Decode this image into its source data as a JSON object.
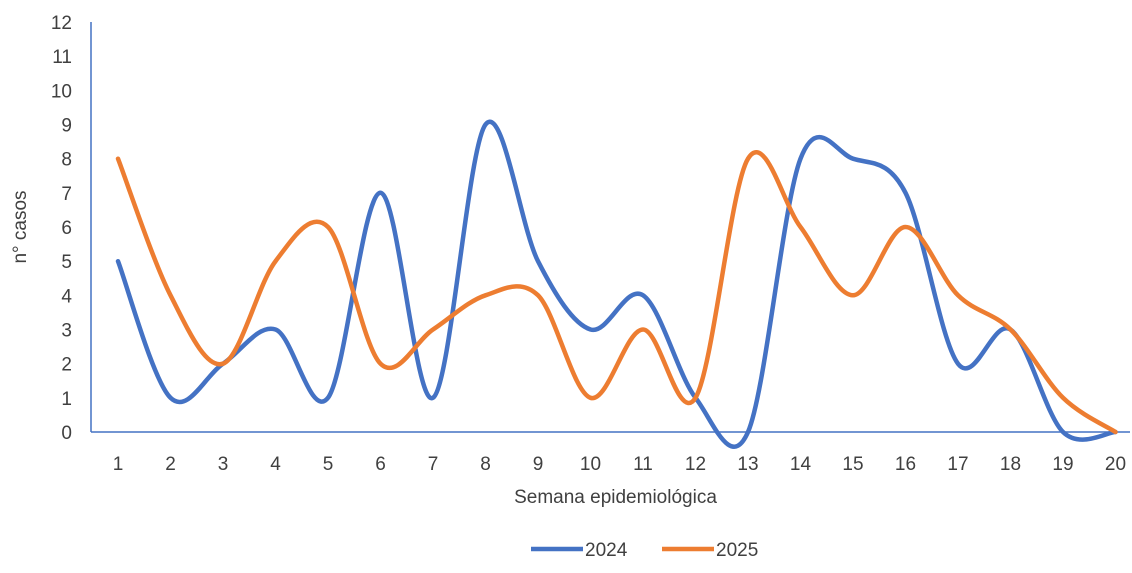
{
  "chart_data": {
    "type": "line",
    "title": "",
    "xlabel": "Semana epidemiológica",
    "ylabel": "n° casos",
    "ylim": [
      0,
      12
    ],
    "yticks": [
      "0",
      "1",
      "2",
      "3",
      "4",
      "5",
      "6",
      "7",
      "8",
      "9",
      "10",
      "11",
      "12"
    ],
    "categories": [
      "1",
      "2",
      "3",
      "4",
      "5",
      "6",
      "7",
      "8",
      "9",
      "10",
      "11",
      "12",
      "13",
      "14",
      "15",
      "16",
      "17",
      "18",
      "19",
      "20"
    ],
    "series": [
      {
        "name": "2024",
        "color": "#4472C4",
        "values": [
          5,
          1,
          2,
          3,
          1,
          7,
          1,
          9,
          5,
          3,
          4,
          1,
          0,
          8,
          8,
          7,
          2,
          3,
          0,
          0
        ]
      },
      {
        "name": "2025",
        "color": "#ED7D31",
        "values": [
          8,
          4,
          2,
          5,
          6,
          2,
          3,
          4,
          4,
          1,
          3,
          1,
          8,
          6,
          4,
          6,
          4,
          3,
          1,
          0
        ]
      }
    ],
    "smooth": true,
    "grid": false,
    "legend_position": "bottom"
  }
}
